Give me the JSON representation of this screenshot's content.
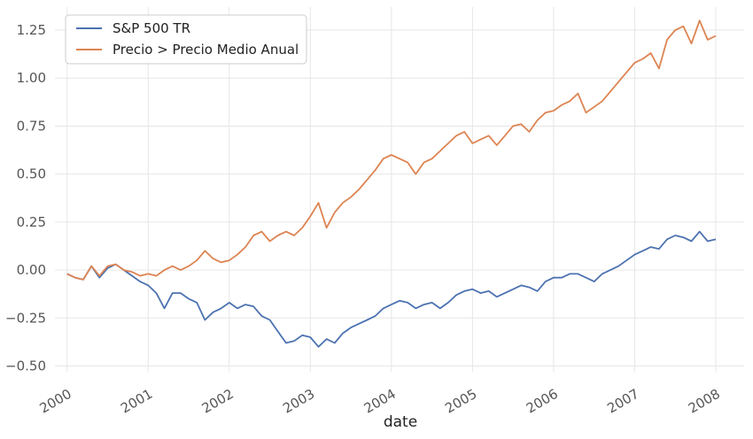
{
  "chart_data": {
    "type": "line",
    "title": "",
    "xlabel": "date",
    "ylabel": "",
    "x_ticks": [
      "2000",
      "2001",
      "2002",
      "2003",
      "2004",
      "2005",
      "2006",
      "2007",
      "2008"
    ],
    "y_ticks": [
      "−0.50",
      "−0.25",
      "0.00",
      "0.25",
      "0.50",
      "0.75",
      "1.00",
      "1.25"
    ],
    "xlim": [
      1999.85,
      2008.35
    ],
    "ylim": [
      -0.53,
      1.37
    ],
    "grid": true,
    "legend_position": "top-left",
    "series": [
      {
        "name": "S&P 500 TR",
        "color": "#4c72b0",
        "x": [
          2000.0,
          2000.1,
          2000.2,
          2000.3,
          2000.4,
          2000.5,
          2000.6,
          2000.7,
          2000.8,
          2000.9,
          2001.0,
          2001.1,
          2001.2,
          2001.3,
          2001.4,
          2001.5,
          2001.6,
          2001.7,
          2001.8,
          2001.9,
          2002.0,
          2002.1,
          2002.2,
          2002.3,
          2002.4,
          2002.5,
          2002.6,
          2002.7,
          2002.8,
          2002.9,
          2003.0,
          2003.1,
          2003.2,
          2003.3,
          2003.4,
          2003.5,
          2003.6,
          2003.7,
          2003.8,
          2003.9,
          2004.0,
          2004.1,
          2004.2,
          2004.3,
          2004.4,
          2004.5,
          2004.6,
          2004.7,
          2004.8,
          2004.9,
          2005.0,
          2005.1,
          2005.2,
          2005.3,
          2005.4,
          2005.5,
          2005.6,
          2005.7,
          2005.8,
          2005.9,
          2006.0,
          2006.1,
          2006.2,
          2006.3,
          2006.4,
          2006.5,
          2006.6,
          2006.7,
          2006.8,
          2006.9,
          2007.0,
          2007.1,
          2007.2,
          2007.3,
          2007.4,
          2007.5,
          2007.6,
          2007.7,
          2007.8,
          2007.9,
          2008.0
        ],
        "values": [
          -0.02,
          -0.04,
          -0.05,
          0.02,
          -0.04,
          0.01,
          0.03,
          0.0,
          -0.03,
          -0.06,
          -0.08,
          -0.12,
          -0.2,
          -0.12,
          -0.12,
          -0.15,
          -0.17,
          -0.26,
          -0.22,
          -0.2,
          -0.17,
          -0.2,
          -0.18,
          -0.19,
          -0.24,
          -0.26,
          -0.32,
          -0.38,
          -0.37,
          -0.34,
          -0.35,
          -0.4,
          -0.36,
          -0.38,
          -0.33,
          -0.3,
          -0.28,
          -0.26,
          -0.24,
          -0.2,
          -0.18,
          -0.16,
          -0.17,
          -0.2,
          -0.18,
          -0.17,
          -0.2,
          -0.17,
          -0.13,
          -0.11,
          -0.1,
          -0.12,
          -0.11,
          -0.14,
          -0.12,
          -0.1,
          -0.08,
          -0.09,
          -0.11,
          -0.06,
          -0.04,
          -0.04,
          -0.02,
          -0.02,
          -0.04,
          -0.06,
          -0.02,
          0.0,
          0.02,
          0.05,
          0.08,
          0.1,
          0.12,
          0.11,
          0.16,
          0.18,
          0.17,
          0.15,
          0.2,
          0.15,
          0.16
        ]
      },
      {
        "name": "Precio > Precio Medio Anual",
        "color": "#dd8452",
        "x": [
          2000.0,
          2000.1,
          2000.2,
          2000.3,
          2000.4,
          2000.5,
          2000.6,
          2000.7,
          2000.8,
          2000.9,
          2001.0,
          2001.1,
          2001.2,
          2001.3,
          2001.4,
          2001.5,
          2001.6,
          2001.7,
          2001.8,
          2001.9,
          2002.0,
          2002.1,
          2002.2,
          2002.3,
          2002.4,
          2002.5,
          2002.6,
          2002.7,
          2002.8,
          2002.9,
          2003.0,
          2003.1,
          2003.2,
          2003.3,
          2003.4,
          2003.5,
          2003.6,
          2003.7,
          2003.8,
          2003.9,
          2004.0,
          2004.1,
          2004.2,
          2004.3,
          2004.4,
          2004.5,
          2004.6,
          2004.7,
          2004.8,
          2004.9,
          2005.0,
          2005.1,
          2005.2,
          2005.3,
          2005.4,
          2005.5,
          2005.6,
          2005.7,
          2005.8,
          2005.9,
          2006.0,
          2006.1,
          2006.2,
          2006.3,
          2006.4,
          2006.5,
          2006.6,
          2006.7,
          2006.8,
          2006.9,
          2007.0,
          2007.1,
          2007.2,
          2007.3,
          2007.4,
          2007.5,
          2007.6,
          2007.7,
          2007.8,
          2007.9,
          2008.0
        ],
        "values": [
          -0.02,
          -0.04,
          -0.05,
          0.02,
          -0.03,
          0.02,
          0.03,
          0.0,
          -0.01,
          -0.03,
          -0.02,
          -0.03,
          0.0,
          0.02,
          0.0,
          0.02,
          0.05,
          0.1,
          0.06,
          0.04,
          0.05,
          0.08,
          0.12,
          0.18,
          0.2,
          0.15,
          0.18,
          0.2,
          0.18,
          0.22,
          0.28,
          0.35,
          0.22,
          0.3,
          0.35,
          0.38,
          0.42,
          0.47,
          0.52,
          0.58,
          0.6,
          0.58,
          0.56,
          0.5,
          0.56,
          0.58,
          0.62,
          0.66,
          0.7,
          0.72,
          0.66,
          0.68,
          0.7,
          0.65,
          0.7,
          0.75,
          0.76,
          0.72,
          0.78,
          0.82,
          0.83,
          0.86,
          0.88,
          0.92,
          0.82,
          0.85,
          0.88,
          0.93,
          0.98,
          1.03,
          1.08,
          1.1,
          1.13,
          1.05,
          1.2,
          1.25,
          1.27,
          1.18,
          1.3,
          1.2,
          1.22
        ]
      }
    ]
  }
}
